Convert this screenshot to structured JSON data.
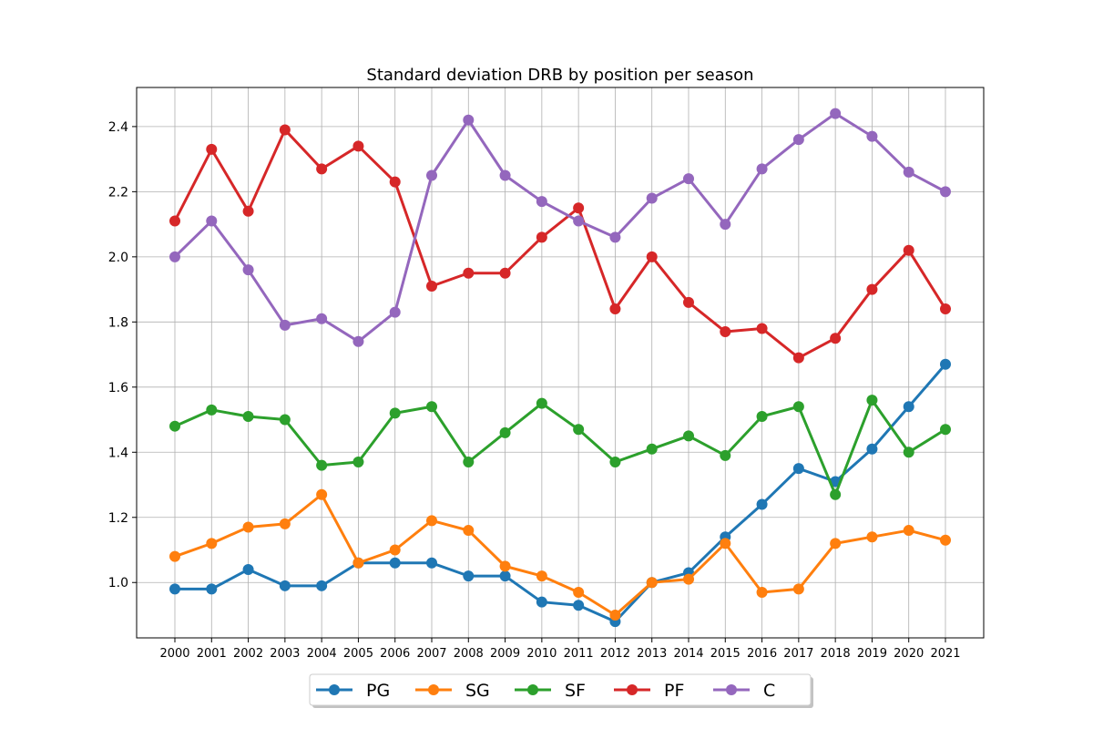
{
  "chart_data": {
    "type": "line",
    "title": "Standard deviation DRB by position per season",
    "xlabel": "",
    "ylabel": "",
    "categories": [
      "2000",
      "2001",
      "2002",
      "2003",
      "2004",
      "2005",
      "2006",
      "2007",
      "2008",
      "2009",
      "2010",
      "2011",
      "2012",
      "2013",
      "2014",
      "2015",
      "2016",
      "2017",
      "2018",
      "2019",
      "2020",
      "2021"
    ],
    "ylim": [
      0.83,
      2.52
    ],
    "yticks": [
      1.0,
      1.2,
      1.4,
      1.6,
      1.8,
      2.0,
      2.2,
      2.4
    ],
    "ytick_labels": [
      "1.0",
      "1.2",
      "1.4",
      "1.6",
      "1.8",
      "2.0",
      "2.2",
      "2.4"
    ],
    "grid": true,
    "legend_position": "bottom-center",
    "series": [
      {
        "name": "PG",
        "color": "#1f77b4",
        "values": [
          0.98,
          0.98,
          1.04,
          0.99,
          0.99,
          1.06,
          1.06,
          1.06,
          1.02,
          1.02,
          0.94,
          0.93,
          0.88,
          1.0,
          1.03,
          1.14,
          1.24,
          1.35,
          1.31,
          1.41,
          1.54,
          1.67
        ]
      },
      {
        "name": "SG",
        "color": "#ff7f0e",
        "values": [
          1.08,
          1.12,
          1.17,
          1.18,
          1.27,
          1.06,
          1.1,
          1.19,
          1.16,
          1.05,
          1.02,
          0.97,
          0.9,
          1.0,
          1.01,
          1.12,
          0.97,
          0.98,
          1.12,
          1.14,
          1.16,
          1.13
        ]
      },
      {
        "name": "SF",
        "color": "#2ca02c",
        "values": [
          1.48,
          1.53,
          1.51,
          1.5,
          1.36,
          1.37,
          1.52,
          1.54,
          1.37,
          1.46,
          1.55,
          1.47,
          1.37,
          1.41,
          1.45,
          1.39,
          1.51,
          1.54,
          1.27,
          1.56,
          1.4,
          1.47
        ]
      },
      {
        "name": "PF",
        "color": "#d62728",
        "values": [
          2.11,
          2.33,
          2.14,
          2.39,
          2.27,
          2.34,
          2.23,
          1.91,
          1.95,
          1.95,
          2.06,
          2.15,
          1.84,
          2.0,
          1.86,
          1.77,
          1.78,
          1.69,
          1.75,
          1.9,
          2.02,
          1.84
        ]
      },
      {
        "name": "C",
        "color": "#9467bd",
        "values": [
          2.0,
          2.11,
          1.96,
          1.79,
          1.81,
          1.74,
          1.83,
          2.25,
          2.42,
          2.25,
          2.17,
          2.11,
          2.06,
          2.18,
          2.24,
          2.1,
          2.27,
          2.36,
          2.44,
          2.37,
          2.26,
          2.2
        ]
      }
    ]
  }
}
